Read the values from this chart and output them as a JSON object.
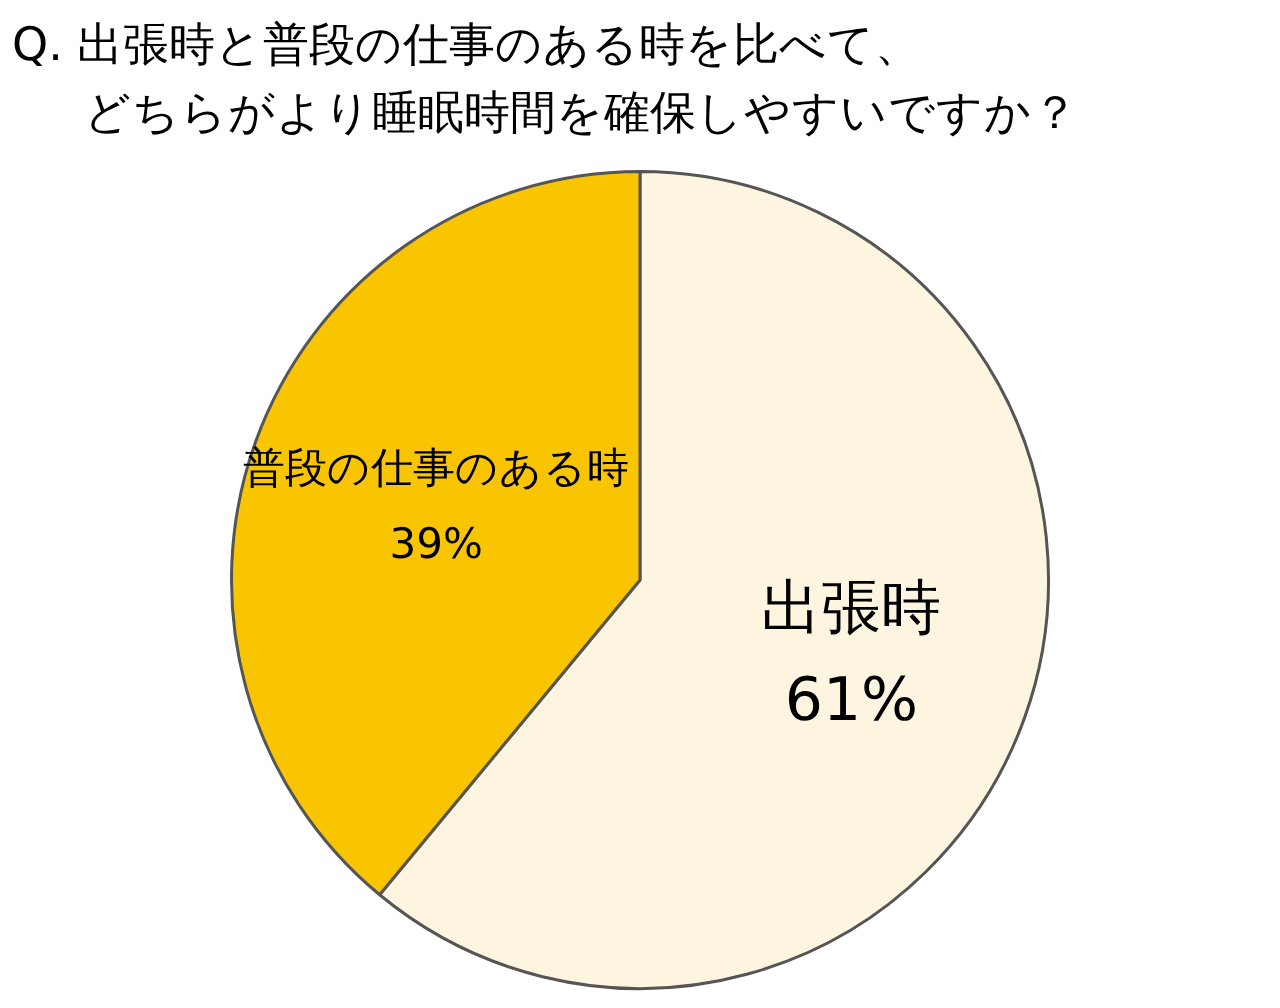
{
  "chart_data": {
    "type": "pie",
    "title": "Q. 出張時と普段の仕事のある時を比べて、",
    "subtitle": "どちらがより睡眠時間を確保しやすいですか？",
    "categories": [
      "出張時",
      "普段の仕事のある時"
    ],
    "values": [
      61,
      39
    ],
    "value_labels": [
      "61%",
      "39%"
    ],
    "colors": [
      "#fdf5e0",
      "#f9c400"
    ],
    "legend": false
  }
}
